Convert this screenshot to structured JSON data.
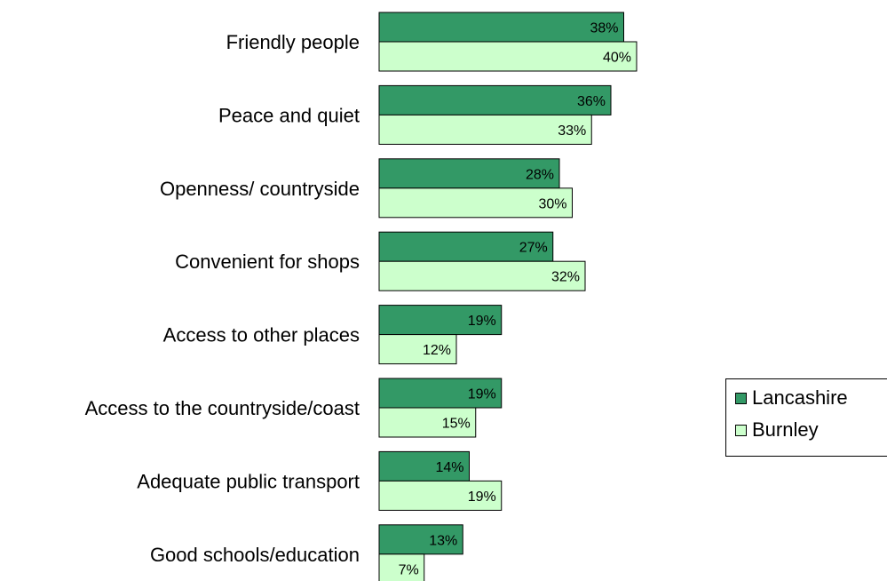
{
  "chart_data": {
    "type": "bar",
    "orientation": "horizontal",
    "categories": [
      "Friendly people",
      "Peace and quiet",
      "Openness/ countryside",
      "Convenient for shops",
      "Access to other places",
      "Access to the countryside/coast",
      "Adequate public transport",
      "Good schools/education"
    ],
    "series": [
      {
        "name": "Lancashire",
        "color": "#339966",
        "values": [
          38,
          36,
          28,
          27,
          19,
          19,
          14,
          13
        ],
        "labels": [
          "38%",
          "36%",
          "28%",
          "27%",
          "19%",
          "19%",
          "14%",
          "13%"
        ]
      },
      {
        "name": "Burnley",
        "color": "#ccffcc",
        "values": [
          40,
          33,
          30,
          32,
          12,
          15,
          19,
          7
        ],
        "labels": [
          "40%",
          "33%",
          "30%",
          "32%",
          "12%",
          "15%",
          "19%",
          "7%"
        ]
      }
    ],
    "value_unit": "%",
    "legend_position": "right",
    "grid": false
  }
}
